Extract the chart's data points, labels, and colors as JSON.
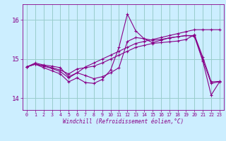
{
  "xlabel": "Windchill (Refroidissement éolien,°C)",
  "background_color": "#cceeff",
  "grid_color": "#99cccc",
  "line_color": "#880088",
  "xlim": [
    -0.5,
    23.5
  ],
  "ylim": [
    13.7,
    16.4
  ],
  "yticks": [
    14,
    15,
    16
  ],
  "xticks": [
    0,
    1,
    2,
    3,
    4,
    5,
    6,
    7,
    8,
    9,
    10,
    11,
    12,
    13,
    14,
    15,
    16,
    17,
    18,
    19,
    20,
    21,
    22,
    23
  ],
  "series": [
    [
      14.8,
      14.9,
      14.85,
      14.82,
      14.78,
      14.55,
      14.65,
      14.8,
      14.9,
      15.0,
      15.1,
      15.2,
      15.3,
      15.4,
      15.45,
      15.5,
      15.55,
      15.6,
      15.65,
      15.7,
      15.75,
      15.75,
      15.75,
      15.75
    ],
    [
      14.8,
      14.87,
      14.83,
      14.78,
      14.72,
      14.62,
      14.75,
      14.78,
      14.82,
      14.9,
      15.0,
      15.1,
      15.2,
      15.3,
      15.35,
      15.4,
      15.42,
      15.44,
      15.46,
      15.5,
      15.62,
      15.05,
      14.42,
      14.43
    ],
    [
      14.8,
      14.87,
      14.82,
      14.76,
      14.68,
      14.52,
      14.65,
      14.58,
      14.5,
      14.55,
      14.65,
      14.78,
      15.45,
      15.55,
      15.52,
      15.48,
      15.5,
      15.54,
      15.57,
      15.6,
      15.6,
      14.98,
      14.38,
      14.42
    ],
    [
      14.8,
      14.87,
      14.78,
      14.7,
      14.62,
      14.42,
      14.52,
      14.4,
      14.38,
      14.48,
      14.72,
      15.3,
      16.15,
      15.72,
      15.52,
      15.42,
      15.48,
      15.54,
      15.57,
      15.6,
      15.58,
      14.95,
      14.08,
      14.42
    ]
  ]
}
